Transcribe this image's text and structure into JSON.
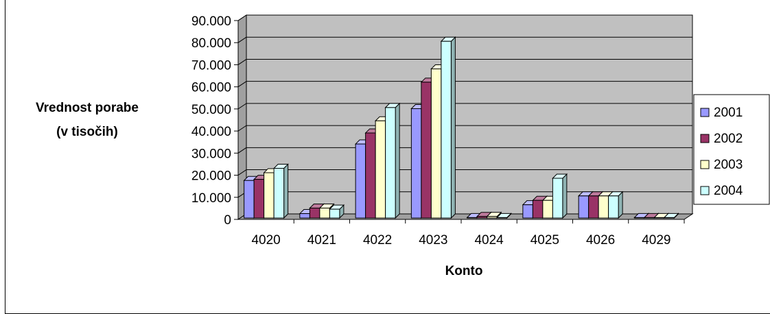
{
  "chart_data": {
    "type": "bar",
    "title": "",
    "xlabel": "Konto",
    "ylabel_lines": [
      "Vrednost porabe",
      "(v tisočih)"
    ],
    "categories": [
      "4020",
      "4021",
      "4022",
      "4023",
      "4024",
      "4025",
      "4026",
      "4029"
    ],
    "y_ticks": [
      "0",
      "10.000",
      "20.000",
      "30.000",
      "40.000",
      "50.000",
      "60.000",
      "70.000",
      "80.000",
      "90.000"
    ],
    "ylim": [
      0,
      90000
    ],
    "grid": true,
    "three_d": true,
    "legend_position": "right",
    "series": [
      {
        "name": "2001",
        "color": "#9999ff",
        "values": [
          17000,
          2000,
          33500,
          49500,
          200,
          6000,
          10000,
          200
        ]
      },
      {
        "name": "2002",
        "color": "#993366",
        "values": [
          17500,
          4500,
          38500,
          61500,
          700,
          8000,
          10000,
          200
        ]
      },
      {
        "name": "2003",
        "color": "#ffffcc",
        "values": [
          20500,
          4500,
          44000,
          67500,
          700,
          8000,
          10000,
          200
        ]
      },
      {
        "name": "2004",
        "color": "#ccffff",
        "values": [
          22500,
          4000,
          50000,
          80000,
          200,
          18000,
          10000,
          200
        ]
      }
    ],
    "colors": {
      "wall": "#c0c0c0",
      "grid": "#000000"
    }
  }
}
